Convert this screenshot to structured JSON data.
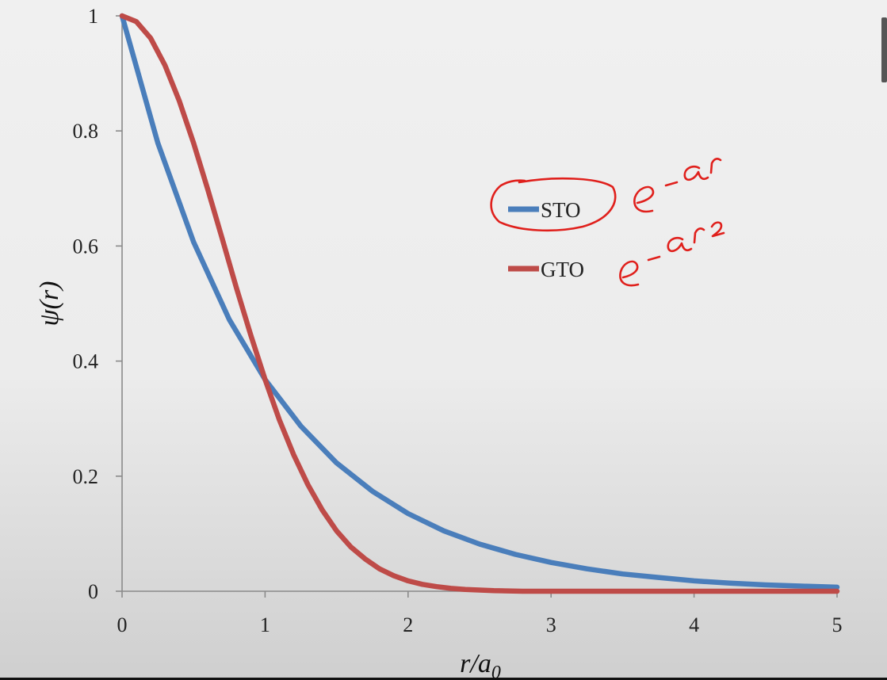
{
  "chart_data": {
    "type": "line",
    "title": "",
    "xlabel": "r/a",
    "xlabel_sub": "0",
    "ylabel": "ψ(r)",
    "xlim": [
      0,
      5
    ],
    "ylim": [
      0,
      1
    ],
    "xticks": [
      "0",
      "1",
      "2",
      "3",
      "4",
      "5"
    ],
    "yticks": [
      "0",
      "0.2",
      "0.4",
      "0.6",
      "0.8",
      "1"
    ],
    "grid": false,
    "legend_position": "upper-center-right",
    "series": [
      {
        "name": "STO",
        "color": "#4a7ebb",
        "x": [
          0,
          0.25,
          0.5,
          0.75,
          1,
          1.25,
          1.5,
          1.75,
          2,
          2.25,
          2.5,
          2.75,
          3,
          3.25,
          3.5,
          3.75,
          4,
          4.25,
          4.5,
          4.75,
          5
        ],
        "y": [
          1,
          0.779,
          0.607,
          0.472,
          0.368,
          0.287,
          0.223,
          0.174,
          0.135,
          0.105,
          0.082,
          0.064,
          0.05,
          0.039,
          0.03,
          0.024,
          0.018,
          0.014,
          0.011,
          0.009,
          0.007
        ]
      },
      {
        "name": "GTO",
        "color": "#be4b48",
        "x": [
          0,
          0.1,
          0.2,
          0.3,
          0.4,
          0.5,
          0.6,
          0.7,
          0.8,
          0.9,
          1,
          1.1,
          1.2,
          1.3,
          1.4,
          1.5,
          1.6,
          1.7,
          1.8,
          1.9,
          2,
          2.1,
          2.2,
          2.3,
          2.4,
          2.6,
          2.8,
          3,
          3.5,
          4,
          4.5,
          5
        ],
        "y": [
          1,
          0.99,
          0.961,
          0.914,
          0.852,
          0.779,
          0.698,
          0.613,
          0.527,
          0.445,
          0.368,
          0.298,
          0.237,
          0.185,
          0.141,
          0.105,
          0.077,
          0.056,
          0.039,
          0.027,
          0.018,
          0.012,
          0.008,
          0.005,
          0.003,
          0.001,
          0,
          0,
          0,
          0,
          0,
          0
        ]
      }
    ],
    "annotation_color": "#e0201c"
  }
}
